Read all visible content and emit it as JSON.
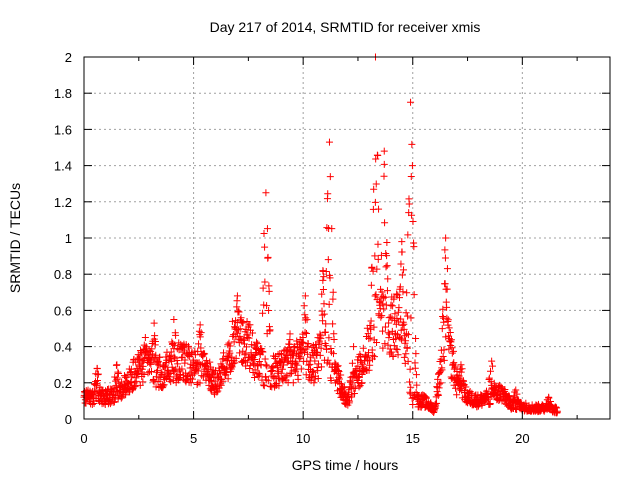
{
  "chart_data": {
    "type": "scatter",
    "title": "Day 217 of 2014, SRMTID for receiver xmis",
    "xlabel": "GPS time / hours",
    "ylabel": "SRMTID / TECUs",
    "xlim": [
      0,
      24
    ],
    "ylim": [
      0,
      2
    ],
    "xticks": [
      0,
      5,
      10,
      15,
      20
    ],
    "yticks": [
      0,
      0.2,
      0.4,
      0.6,
      0.8,
      1,
      1.2,
      1.4,
      1.6,
      1.8,
      2
    ],
    "ytick_labels": [
      "0",
      "0.2",
      "0.4",
      "0.6",
      "0.8",
      "1",
      "1.2",
      "1.4",
      "1.6",
      "1.8",
      "2"
    ],
    "xtick_labels": [
      "0",
      "5",
      "10",
      "15",
      "20"
    ],
    "grid": true,
    "marker": "+",
    "color": "#ff0000",
    "series": [
      {
        "name": "SRMTID",
        "profile": [
          [
            0.0,
            0.12
          ],
          [
            0.5,
            0.12
          ],
          [
            1.0,
            0.12
          ],
          [
            1.5,
            0.14
          ],
          [
            2.0,
            0.2
          ],
          [
            2.5,
            0.28
          ],
          [
            3.0,
            0.3
          ],
          [
            3.5,
            0.25
          ],
          [
            4.0,
            0.3
          ],
          [
            4.5,
            0.32
          ],
          [
            5.0,
            0.28
          ],
          [
            5.5,
            0.3
          ],
          [
            6.0,
            0.2
          ],
          [
            6.5,
            0.3
          ],
          [
            7.0,
            0.5
          ],
          [
            7.5,
            0.4
          ],
          [
            8.0,
            0.3
          ],
          [
            8.5,
            0.25
          ],
          [
            9.0,
            0.28
          ],
          [
            9.5,
            0.3
          ],
          [
            10.0,
            0.35
          ],
          [
            10.5,
            0.3
          ],
          [
            11.0,
            0.4
          ],
          [
            11.5,
            0.25
          ],
          [
            12.0,
            0.1
          ],
          [
            12.5,
            0.25
          ],
          [
            13.0,
            0.4
          ],
          [
            13.5,
            0.6
          ],
          [
            14.0,
            0.5
          ],
          [
            14.5,
            0.55
          ],
          [
            15.0,
            0.1
          ],
          [
            15.5,
            0.1
          ],
          [
            16.0,
            0.05
          ],
          [
            16.5,
            0.5
          ],
          [
            17.0,
            0.2
          ],
          [
            17.5,
            0.12
          ],
          [
            18.0,
            0.1
          ],
          [
            18.5,
            0.12
          ],
          [
            19.0,
            0.15
          ],
          [
            19.5,
            0.08
          ],
          [
            20.0,
            0.07
          ],
          [
            20.5,
            0.06
          ],
          [
            21.0,
            0.06
          ],
          [
            21.5,
            0.05
          ]
        ],
        "peaks": [
          [
            0.6,
            0.28
          ],
          [
            1.5,
            0.3
          ],
          [
            2.8,
            0.45
          ],
          [
            3.2,
            0.53
          ],
          [
            4.1,
            0.55
          ],
          [
            5.3,
            0.52
          ],
          [
            7.0,
            0.68
          ],
          [
            8.3,
            1.25
          ],
          [
            9.4,
            0.47
          ],
          [
            10.1,
            0.68
          ],
          [
            10.9,
            0.82
          ],
          [
            11.2,
            1.53
          ],
          [
            12.3,
            0.4
          ],
          [
            13.3,
            2.0
          ],
          [
            13.7,
            1.48
          ],
          [
            14.5,
            0.98
          ],
          [
            14.9,
            1.75
          ],
          [
            16.5,
            1.0
          ],
          [
            17.2,
            0.3
          ],
          [
            18.6,
            0.32
          ],
          [
            19.7,
            0.16
          ],
          [
            21.2,
            0.12
          ]
        ],
        "x_start": 0.0,
        "x_end": 21.6,
        "n_points": 1650,
        "scatter": 0.35,
        "seed": 217
      }
    ]
  }
}
